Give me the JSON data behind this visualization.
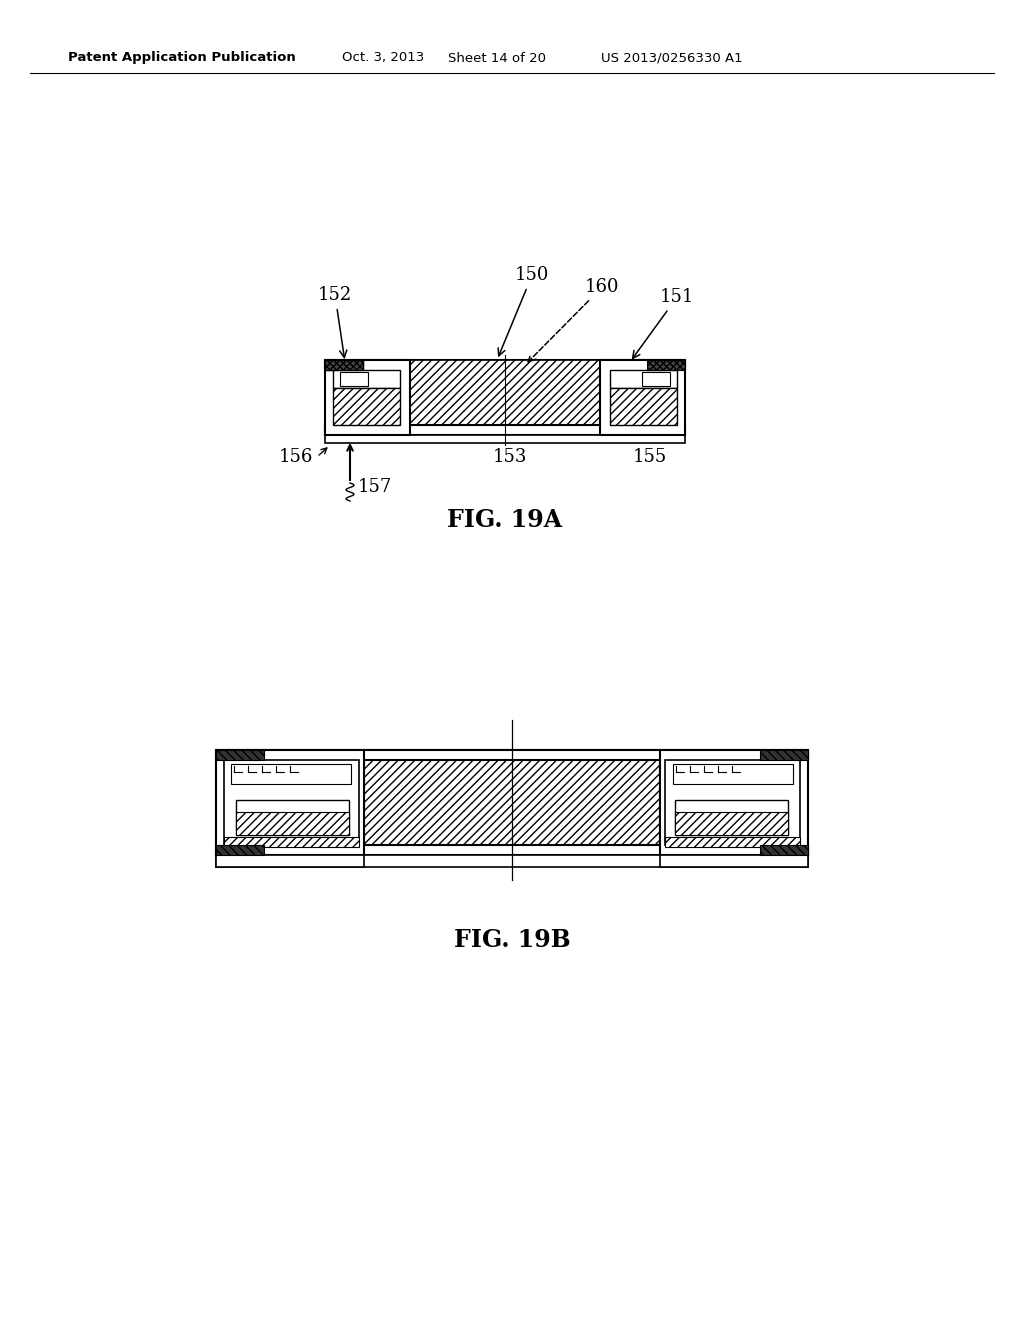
{
  "bg_color": "#ffffff",
  "header_text": "Patent Application Publication",
  "header_date": "Oct. 3, 2013",
  "header_sheet": "Sheet 14 of 20",
  "header_patent": "US 2013/0256330 A1",
  "fig19a_label": "FIG. 19A",
  "fig19b_label": "FIG. 19B"
}
